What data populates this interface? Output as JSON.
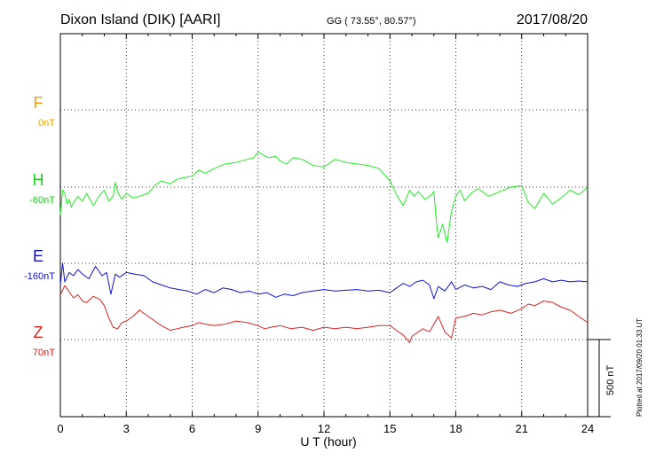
{
  "header": {
    "station": "Dixon Island (DIK)  [AARI]",
    "coords": "GG ( 73.55°,  80.57°)",
    "date": "2017/08/20"
  },
  "footer": {
    "plotted": "Plotted at 2017/09/20 01:33 UT"
  },
  "scale_bar": {
    "label": "500 nT",
    "value_nT": 500
  },
  "chart_data": {
    "type": "line",
    "xlabel": "U T (hour)",
    "xlim": [
      0,
      24
    ],
    "xticks": [
      0,
      3,
      6,
      9,
      12,
      15,
      18,
      21,
      24
    ],
    "xtick_labels": [
      "0",
      "3",
      "6",
      "9",
      "12",
      "15",
      "18",
      "21",
      "24"
    ],
    "grid": true,
    "components": [
      {
        "name": "F",
        "baseline_label": "0nT",
        "color": "#f5a100"
      },
      {
        "name": "H",
        "baseline_label": "-60nT",
        "color": "#22cc22"
      },
      {
        "name": "E",
        "baseline_label": "-160nT",
        "color": "#1111cc"
      },
      {
        "name": "Z",
        "baseline_label": "70nT",
        "color": "#dd2222"
      }
    ],
    "series": [
      {
        "name": "H",
        "color": "#22ee22",
        "x": [
          0,
          0.1,
          0.2,
          0.3,
          0.4,
          0.5,
          0.6,
          0.8,
          1.0,
          1.2,
          1.5,
          1.8,
          2.0,
          2.2,
          2.4,
          2.5,
          2.6,
          2.8,
          3.0,
          3.3,
          3.6,
          4.0,
          4.3,
          4.6,
          5.0,
          5.3,
          5.6,
          6.0,
          6.3,
          6.6,
          7.0,
          7.5,
          8.0,
          8.5,
          8.8,
          9.0,
          9.2,
          9.5,
          9.8,
          10.0,
          10.3,
          10.6,
          11.0,
          11.5,
          12.0,
          12.5,
          13.0,
          13.5,
          14.0,
          14.5,
          15.0,
          15.3,
          15.6,
          15.9,
          16.1,
          16.3,
          16.6,
          16.9,
          17.0,
          17.1,
          17.2,
          17.4,
          17.6,
          17.8,
          18.0,
          18.2,
          18.4,
          18.7,
          19.0,
          19.5,
          20.0,
          20.5,
          21.0,
          21.3,
          21.6,
          22.0,
          22.4,
          22.8,
          23.2,
          23.6,
          24.0
        ],
        "y": [
          -180,
          -20,
          -40,
          -110,
          -80,
          -130,
          -100,
          -60,
          -90,
          -40,
          -120,
          -50,
          -20,
          -90,
          -60,
          30,
          -30,
          -80,
          -40,
          -70,
          -60,
          -40,
          10,
          40,
          20,
          50,
          60,
          70,
          110,
          90,
          120,
          150,
          160,
          180,
          190,
          230,
          210,
          190,
          200,
          170,
          150,
          190,
          180,
          140,
          130,
          180,
          160,
          150,
          140,
          120,
          40,
          -50,
          -120,
          -20,
          -60,
          -30,
          -80,
          -50,
          -30,
          -200,
          -330,
          -240,
          -360,
          -160,
          -60,
          -20,
          -90,
          -40,
          -10,
          -60,
          -30,
          0,
          10,
          -100,
          -140,
          -40,
          -110,
          -70,
          -20,
          -50,
          0
        ]
      },
      {
        "name": "E",
        "color": "#1111dd",
        "x": [
          0,
          0.1,
          0.2,
          0.4,
          0.6,
          0.8,
          1.0,
          1.3,
          1.6,
          1.9,
          2.1,
          2.3,
          2.5,
          2.7,
          3.0,
          3.4,
          3.8,
          4.2,
          4.6,
          5.0,
          5.4,
          5.8,
          6.2,
          6.6,
          7.0,
          7.4,
          7.8,
          8.2,
          8.6,
          9.0,
          9.4,
          9.8,
          10.2,
          10.6,
          11.0,
          11.5,
          12.0,
          12.5,
          13.0,
          13.5,
          14.0,
          14.5,
          15.0,
          15.3,
          15.6,
          15.9,
          16.2,
          16.5,
          16.8,
          17.0,
          17.2,
          17.5,
          17.8,
          18.0,
          18.4,
          18.8,
          19.2,
          19.6,
          20.0,
          20.4,
          20.8,
          21.2,
          21.6,
          22.0,
          22.4,
          22.8,
          23.2,
          23.6,
          24.0
        ],
        "y": [
          -140,
          0,
          -120,
          -60,
          -80,
          -40,
          -70,
          -100,
          -20,
          -80,
          -60,
          -200,
          -70,
          -90,
          -60,
          -70,
          -80,
          -120,
          -140,
          -160,
          -170,
          -180,
          -200,
          -170,
          -190,
          -160,
          -170,
          -190,
          -180,
          -200,
          -190,
          -220,
          -200,
          -210,
          -190,
          -180,
          -170,
          -180,
          -175,
          -170,
          -180,
          -175,
          -190,
          -160,
          -130,
          -150,
          -120,
          -110,
          -140,
          -230,
          -150,
          -180,
          -120,
          -170,
          -140,
          -160,
          -150,
          -170,
          -120,
          -140,
          -150,
          -130,
          -120,
          -100,
          -120,
          -110,
          -120,
          -115,
          -120
        ]
      },
      {
        "name": "Z",
        "color": "#dd2222",
        "x": [
          0,
          0.2,
          0.4,
          0.6,
          0.8,
          1.0,
          1.2,
          1.5,
          1.8,
          2.0,
          2.2,
          2.4,
          2.6,
          2.8,
          3.0,
          3.3,
          3.6,
          4.0,
          4.3,
          4.6,
          5.0,
          5.3,
          5.6,
          6.0,
          6.3,
          6.6,
          7.0,
          7.5,
          8.0,
          8.5,
          9.0,
          9.3,
          9.6,
          10.0,
          10.5,
          11.0,
          11.5,
          12.0,
          12.5,
          13.0,
          13.5,
          14.0,
          14.5,
          15.0,
          15.3,
          15.6,
          15.9,
          16.0,
          16.2,
          16.5,
          16.8,
          17.0,
          17.2,
          17.5,
          17.8,
          18.0,
          18.4,
          18.8,
          19.2,
          19.6,
          20.0,
          20.5,
          21.0,
          21.3,
          21.6,
          22.0,
          22.4,
          22.8,
          23.2,
          23.6,
          24.0
        ],
        "y": [
          290,
          350,
          310,
          270,
          290,
          250,
          240,
          280,
          260,
          220,
          140,
          80,
          70,
          110,
          120,
          150,
          190,
          150,
          120,
          90,
          60,
          70,
          80,
          90,
          110,
          100,
          90,
          100,
          120,
          110,
          90,
          70,
          80,
          90,
          70,
          80,
          60,
          80,
          70,
          80,
          70,
          80,
          90,
          90,
          60,
          30,
          -20,
          20,
          40,
          70,
          50,
          100,
          150,
          50,
          10,
          140,
          150,
          170,
          160,
          180,
          190,
          170,
          200,
          230,
          220,
          250,
          240,
          210,
          190,
          150,
          110
        ]
      }
    ]
  }
}
